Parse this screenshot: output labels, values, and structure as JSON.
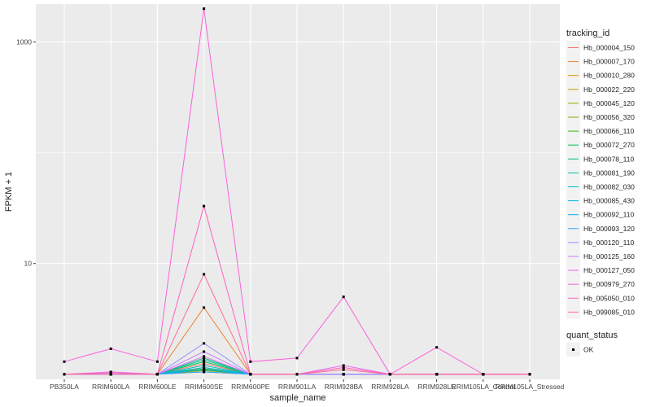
{
  "chart_data": {
    "type": "line",
    "xlabel": "sample_name",
    "ylabel": "FPKM + 1",
    "y_scale": "log10",
    "ylim": [
      0.9,
      2200
    ],
    "y_ticks": [
      {
        "value": 10,
        "label": "10"
      },
      {
        "value": 1000,
        "label": "1000"
      }
    ],
    "grid": true,
    "categories": [
      "PB350LA",
      "RRIM600LA",
      "RRIM600LE",
      "RRIM600SE",
      "RRIM600PE",
      "RRIM901LA",
      "RRIM928BA",
      "RRIM928LA",
      "RRIM928LE",
      "RRIM105LA_Control",
      "RRIM105LA_Stressed"
    ],
    "legend_title": "tracking_id",
    "legend_position": "right",
    "series": [
      {
        "name": "Hb_000004_150",
        "color": "#F8766D",
        "values": [
          1,
          1,
          1,
          1.25,
          1,
          1,
          1,
          1,
          1,
          1,
          1
        ]
      },
      {
        "name": "Hb_000007_170",
        "color": "#EA8331",
        "values": [
          1,
          1,
          1,
          4,
          1,
          1,
          1,
          1,
          1,
          1,
          1
        ]
      },
      {
        "name": "Hb_000010_280",
        "color": "#D89000",
        "values": [
          1,
          1,
          1,
          1.15,
          1,
          1,
          1,
          1,
          1,
          1,
          1
        ]
      },
      {
        "name": "Hb_000022_220",
        "color": "#C09B00",
        "values": [
          1,
          1,
          1,
          1.1,
          1,
          1,
          1,
          1,
          1,
          1,
          1
        ]
      },
      {
        "name": "Hb_000045_120",
        "color": "#A3A500",
        "values": [
          1,
          1,
          1,
          1.05,
          1,
          1,
          1,
          1,
          1,
          1,
          1
        ]
      },
      {
        "name": "Hb_000056_320",
        "color": "#7CAE00",
        "values": [
          1,
          1,
          1,
          1.08,
          1,
          1,
          1,
          1,
          1,
          1,
          1
        ]
      },
      {
        "name": "Hb_000066_110",
        "color": "#39B600",
        "values": [
          1,
          1,
          1,
          1.12,
          1,
          1,
          1,
          1,
          1,
          1,
          1
        ]
      },
      {
        "name": "Hb_000072_270",
        "color": "#00BB4E",
        "values": [
          1,
          1,
          1,
          1.3,
          1,
          1,
          1,
          1,
          1,
          1,
          1
        ]
      },
      {
        "name": "Hb_000078_110",
        "color": "#00BF7D",
        "values": [
          1,
          1,
          1,
          1.4,
          1,
          1,
          1,
          1,
          1,
          1,
          1
        ]
      },
      {
        "name": "Hb_000081_190",
        "color": "#00C1A3",
        "values": [
          1,
          1,
          1,
          1.35,
          1,
          1,
          1,
          1,
          1,
          1,
          1
        ]
      },
      {
        "name": "Hb_000082_030",
        "color": "#00BFC4",
        "values": [
          1,
          1,
          1,
          1.2,
          1,
          1,
          1,
          1,
          1,
          1,
          1
        ]
      },
      {
        "name": "Hb_000085_430",
        "color": "#00BAE0",
        "values": [
          1,
          1,
          1,
          1.15,
          1,
          1,
          1,
          1,
          1,
          1,
          1
        ]
      },
      {
        "name": "Hb_000092_110",
        "color": "#00B0F6",
        "values": [
          1,
          1,
          1,
          1.1,
          1,
          1,
          1,
          1,
          1,
          1,
          1
        ]
      },
      {
        "name": "Hb_000093_120",
        "color": "#35A2FF",
        "values": [
          1,
          1,
          1,
          1.05,
          1,
          1,
          1,
          1,
          1,
          1,
          1
        ]
      },
      {
        "name": "Hb_000120_110",
        "color": "#9590FF",
        "values": [
          1,
          1,
          1,
          1.9,
          1,
          1,
          1,
          1,
          1,
          1,
          1
        ]
      },
      {
        "name": "Hb_000125_160",
        "color": "#C77CFF",
        "values": [
          1,
          1,
          1,
          1.6,
          1,
          1,
          1,
          1,
          1,
          1,
          1
        ]
      },
      {
        "name": "Hb_000127_050",
        "color": "#E76BF3",
        "values": [
          1,
          1.05,
          1,
          1.45,
          1,
          1,
          1.2,
          1,
          1,
          1,
          1
        ]
      },
      {
        "name": "Hb_000979_270",
        "color": "#FA62DB",
        "values": [
          1.3,
          1.7,
          1.3,
          2000,
          1.3,
          1.4,
          5,
          1,
          1.75,
          1,
          1
        ]
      },
      {
        "name": "Hb_005050_010",
        "color": "#FF62BC",
        "values": [
          1,
          1.03,
          1,
          33,
          1,
          1,
          1.15,
          1,
          1,
          1,
          1
        ]
      },
      {
        "name": "Hb_099085_010",
        "color": "#FF6C91",
        "values": [
          1,
          1,
          1,
          8,
          1,
          1,
          1.1,
          1,
          1,
          1,
          1
        ]
      }
    ],
    "shape_legend_title": "quant_status",
    "shape_legend_items": [
      "OK"
    ]
  }
}
